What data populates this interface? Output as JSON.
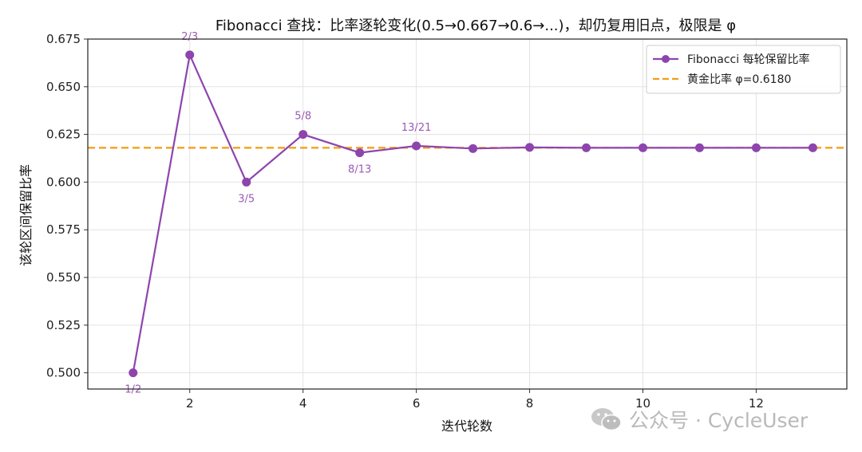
{
  "watermark": {
    "text": "公众号 · CycleUser",
    "icon": "wechat-icon"
  },
  "chart_data": {
    "type": "line",
    "title": "Fibonacci 查找：比率逐轮变化(0.5→0.667→0.6→...)，却仍复用旧点，极限是 φ",
    "xlabel": "迭代轮数",
    "ylabel": "该轮区间保留比率",
    "xlim": [
      0.2,
      13.6
    ],
    "ylim": [
      0.4915,
      0.675
    ],
    "xticks": [
      2,
      4,
      6,
      8,
      10,
      12
    ],
    "yticks": [
      0.5,
      0.525,
      0.55,
      0.575,
      0.6,
      0.625,
      0.65,
      0.675
    ],
    "ytick_labels": [
      "0.500",
      "0.525",
      "0.550",
      "0.575",
      "0.600",
      "0.625",
      "0.650",
      "0.675"
    ],
    "grid": true,
    "legend_position": "top-right",
    "colors": {
      "series": "#8e44ad",
      "reference": "#f39c12",
      "annotation": "#9b59b6"
    },
    "series": [
      {
        "name": "Fibonacci 每轮保留比率",
        "x": [
          1,
          2,
          3,
          4,
          5,
          6,
          7,
          8,
          9,
          10,
          11,
          12,
          13
        ],
        "values": [
          0.5,
          0.6667,
          0.6,
          0.625,
          0.6154,
          0.619,
          0.6176,
          0.6182,
          0.618,
          0.618,
          0.618,
          0.618,
          0.618
        ]
      }
    ],
    "reference_line": {
      "name": "黄金比率 φ=0.6180",
      "value": 0.618
    },
    "annotations": [
      {
        "x": 1,
        "y": 0.5,
        "text": "1/2",
        "position": "below"
      },
      {
        "x": 2,
        "y": 0.6667,
        "text": "2/3",
        "position": "above"
      },
      {
        "x": 3,
        "y": 0.6,
        "text": "3/5",
        "position": "below"
      },
      {
        "x": 4,
        "y": 0.625,
        "text": "5/8",
        "position": "above"
      },
      {
        "x": 5,
        "y": 0.6154,
        "text": "8/13",
        "position": "below"
      },
      {
        "x": 6,
        "y": 0.619,
        "text": "13/21",
        "position": "above"
      }
    ]
  }
}
